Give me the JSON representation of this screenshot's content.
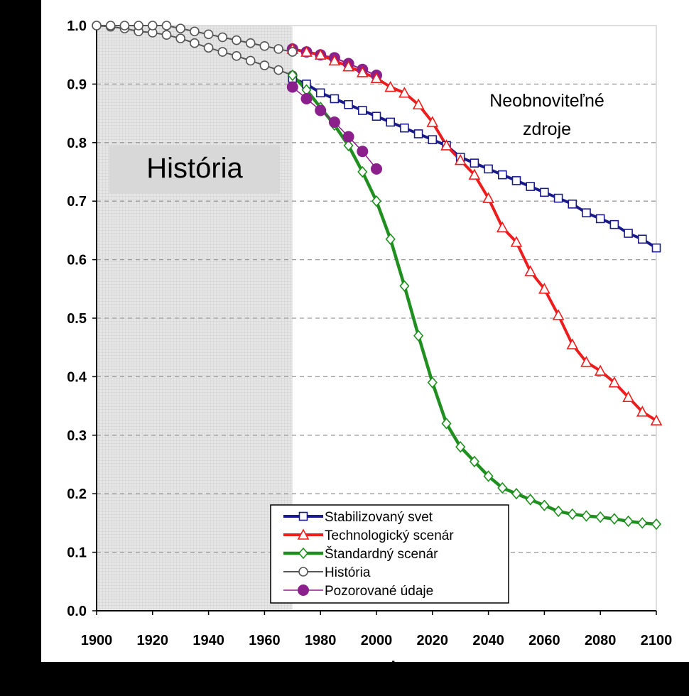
{
  "chart_data": {
    "type": "line",
    "x_ticks": [
      "1900",
      "1920",
      "1940",
      "1960",
      "1980",
      "2000",
      "2020",
      "2040",
      "2060",
      "2080",
      "2100"
    ],
    "y_ticks": [
      "0.0",
      "0.1",
      "0.2",
      "0.3",
      "0.4",
      "0.5",
      "0.6",
      "0.7",
      "0.8",
      "0.9",
      "1.0"
    ],
    "xlim": [
      1900,
      2100
    ],
    "ylim": [
      0,
      1
    ],
    "xlabel": "rok",
    "ylabel": "",
    "grid": "horizontal dashed",
    "legend_placement": "bottom-center",
    "shaded_region": {
      "from": 1900,
      "to": 1970,
      "label": "História"
    },
    "annotation": {
      "line1": "Neobnoviteľné",
      "line2": "zdroje"
    },
    "series": [
      {
        "name": "Stabilizovaný svet",
        "color": "#1a1a8c",
        "marker": "square",
        "x": [
          1970,
          1975,
          1980,
          1985,
          1990,
          1995,
          2000,
          2005,
          2010,
          2015,
          2020,
          2025,
          2030,
          2035,
          2040,
          2045,
          2050,
          2055,
          2060,
          2065,
          2070,
          2075,
          2080,
          2085,
          2090,
          2095,
          2100
        ],
        "y": [
          0.91,
          0.9,
          0.885,
          0.875,
          0.865,
          0.855,
          0.845,
          0.835,
          0.825,
          0.815,
          0.805,
          0.795,
          0.775,
          0.765,
          0.755,
          0.745,
          0.735,
          0.725,
          0.715,
          0.705,
          0.695,
          0.68,
          0.67,
          0.66,
          0.645,
          0.635,
          0.62
        ]
      },
      {
        "name": "Technologický scenár",
        "color": "#ee1c1c",
        "marker": "triangle",
        "x": [
          1970,
          1975,
          1980,
          1985,
          1990,
          1995,
          2000,
          2005,
          2010,
          2015,
          2020,
          2025,
          2030,
          2035,
          2040,
          2045,
          2050,
          2055,
          2060,
          2065,
          2070,
          2075,
          2080,
          2085,
          2090,
          2095,
          2100
        ],
        "y": [
          0.96,
          0.955,
          0.95,
          0.94,
          0.93,
          0.92,
          0.91,
          0.895,
          0.885,
          0.865,
          0.835,
          0.795,
          0.77,
          0.745,
          0.705,
          0.655,
          0.63,
          0.58,
          0.55,
          0.505,
          0.455,
          0.425,
          0.41,
          0.39,
          0.365,
          0.34,
          0.325
        ]
      },
      {
        "name": "Štandardný scenár",
        "color": "#1f8f1f",
        "marker": "diamond",
        "x": [
          1970,
          1975,
          1980,
          1985,
          1990,
          1995,
          2000,
          2005,
          2010,
          2015,
          2020,
          2025,
          2030,
          2035,
          2040,
          2045,
          2050,
          2055,
          2060,
          2065,
          2070,
          2075,
          2080,
          2085,
          2090,
          2095,
          2100
        ],
        "y": [
          0.915,
          0.89,
          0.86,
          0.83,
          0.795,
          0.75,
          0.7,
          0.635,
          0.555,
          0.47,
          0.39,
          0.32,
          0.28,
          0.255,
          0.23,
          0.21,
          0.2,
          0.19,
          0.18,
          0.17,
          0.165,
          0.162,
          0.16,
          0.157,
          0.153,
          0.15,
          0.148
        ]
      },
      {
        "name": "História",
        "color": "#555555",
        "marker": "circle",
        "x": [
          1900,
          1905,
          1910,
          1915,
          1920,
          1925,
          1930,
          1935,
          1940,
          1945,
          1950,
          1955,
          1960,
          1965,
          1970
        ],
        "y": [
          1.0,
          1.0,
          1.0,
          1.0,
          1.0,
          1.0,
          0.995,
          0.99,
          0.985,
          0.98,
          0.975,
          0.97,
          0.965,
          0.96,
          0.955
        ]
      },
      {
        "name": "Pozorované údaje",
        "color": "#8b1f8b",
        "marker": "filled-circle",
        "x": [
          1970,
          1975,
          1980,
          1985,
          1990,
          1995,
          2000
        ],
        "y": [
          0.895,
          0.875,
          0.855,
          0.835,
          0.81,
          0.785,
          0.755
        ]
      }
    ],
    "extra_lines": [
      {
        "color": "#555555",
        "x": [
          1900,
          1905,
          1910,
          1915,
          1920,
          1925,
          1930,
          1935,
          1940,
          1945,
          1950,
          1955,
          1960,
          1965,
          1970
        ],
        "y": [
          1.0,
          0.998,
          0.995,
          0.99,
          0.988,
          0.984,
          0.978,
          0.97,
          0.962,
          0.955,
          0.948,
          0.94,
          0.932,
          0.924,
          0.915
        ]
      },
      {
        "color": "#8b1f8b",
        "x": [
          1970,
          1975,
          1980,
          1985,
          1990,
          1995,
          2000
        ],
        "y": [
          0.96,
          0.955,
          0.95,
          0.945,
          0.935,
          0.925,
          0.915
        ]
      }
    ]
  }
}
